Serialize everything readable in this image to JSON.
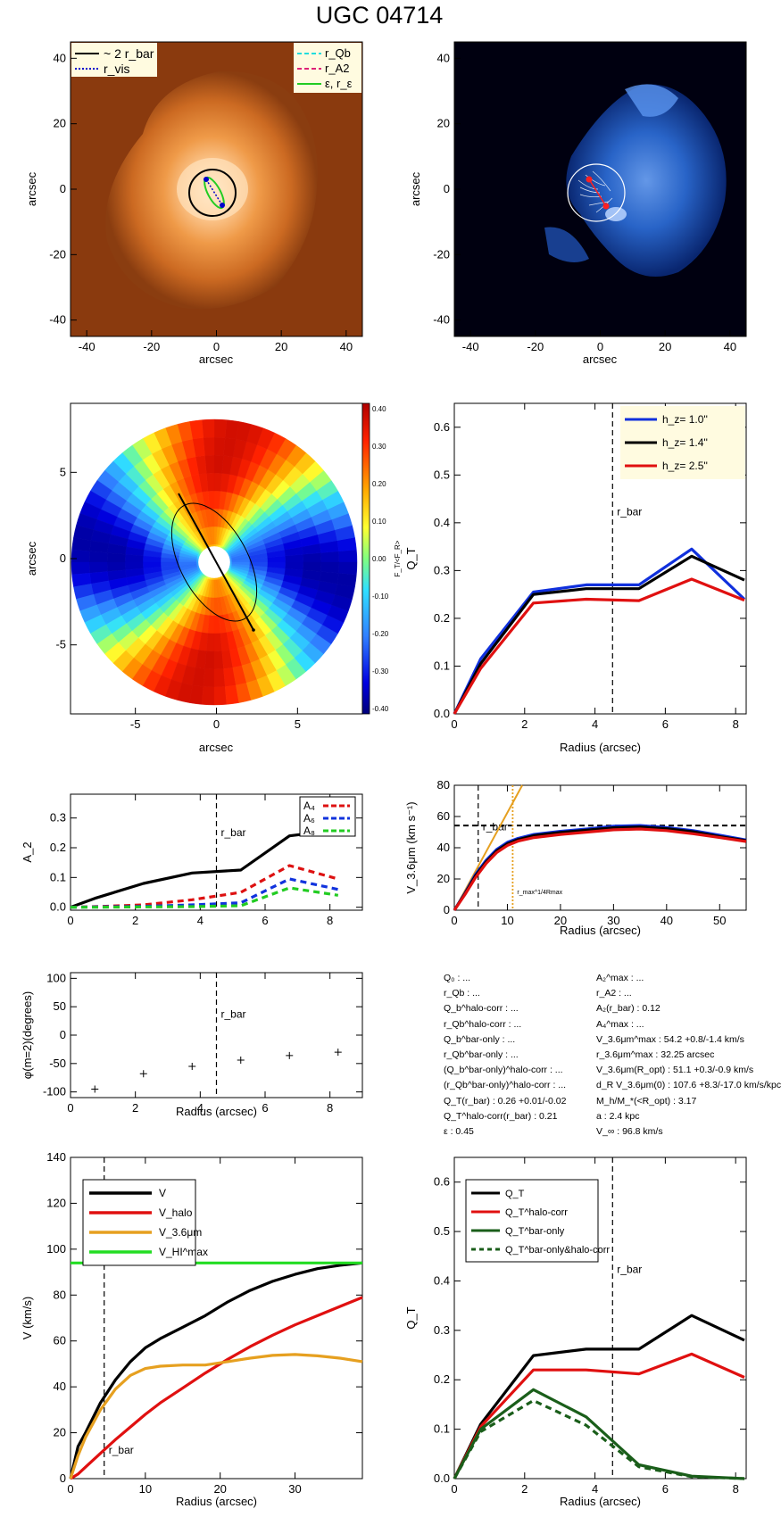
{
  "title": "UGC 04714",
  "info_left": [
    "Q₀ : ...",
    "r_Qb : ...",
    "Q_b^halo-corr : ...",
    "r_Qb^halo-corr : ...",
    "Q_b^bar-only : ...",
    "r_Qb^bar-only : ...",
    "(Q_b^bar-only)^halo-corr : ...",
    "(r_Qb^bar-only)^halo-corr : ...",
    "Q_T(r_bar) :  0.26 +0.01/-0.02",
    "Q_T^halo-corr(r_bar) :  0.21",
    "ε :  0.45"
  ],
  "info_right": [
    "A₂^max : ...",
    "r_A2 : ...",
    "A₂(r_bar) :  0.12",
    "A₄^max : ...",
    "V_3.6μm^max :  54.2 +0.8/-1.4 km/s",
    "r_3.6μm^max :  32.25 arcsec",
    "V_3.6μm(R_opt) :  51.1 +0.3/-0.9 km/s",
    "d_R V_3.6μm(0) :  107.6 +8.3/-17.0 km/s/kpc",
    "M_h/M_*(<R_opt) :  3.17",
    "a :  2.4 kpc",
    "V_∞ :  96.8 km/s"
  ],
  "image_panels": {
    "xlabel": "arcsec",
    "ylabel": "arcsec",
    "ticks": [
      -40,
      -20,
      0,
      20,
      40
    ],
    "legend_left": [
      "~ 2 r_bar",
      "r_vis"
    ],
    "legend_right": [
      "r_Qb",
      "r_A2",
      "ε, r_ε"
    ],
    "colors": {
      "two_rbar": "#000000",
      "rvis": "#0000cc",
      "rqb": "#22dddd",
      "ra2": "#dd2277",
      "eps": "#22cc22"
    }
  },
  "polar_map": {
    "xlabel": "arcsec",
    "ylabel": "arcsec",
    "ticks": [
      -5,
      0,
      5
    ],
    "colorbar_label": "F_T/<F_R>",
    "colorbar_ticks": [
      "0.40",
      "0.30",
      "0.20",
      "0.10",
      "0.00",
      "-0.10",
      "-0.20",
      "-0.30",
      "-0.40"
    ]
  },
  "chart_data": [
    {
      "id": "qt_hz",
      "type": "line",
      "xlabel": "Radius (arcsec)",
      "ylabel": "Q_T",
      "xlim": [
        0,
        8.3
      ],
      "ylim": [
        0,
        0.65
      ],
      "xticks": [
        0,
        2,
        4,
        6,
        8
      ],
      "yticks": [
        0.0,
        0.1,
        0.2,
        0.3,
        0.4,
        0.5,
        0.6
      ],
      "vline_label": "r_bar",
      "vline_x": 4.5,
      "x": [
        0,
        0.75,
        2.25,
        3.75,
        5.25,
        6.75,
        8.25
      ],
      "series": [
        {
          "name": "h_z=  1.0''",
          "color": "#1030dd",
          "values": [
            0,
            0.115,
            0.255,
            0.27,
            0.27,
            0.345,
            0.24
          ]
        },
        {
          "name": "h_z=  1.4''",
          "color": "#000000",
          "values": [
            0,
            0.105,
            0.25,
            0.262,
            0.262,
            0.33,
            0.28
          ]
        },
        {
          "name": "h_z=  2.5''",
          "color": "#e01010",
          "values": [
            0,
            0.095,
            0.232,
            0.24,
            0.237,
            0.282,
            0.238
          ]
        }
      ]
    },
    {
      "id": "a2",
      "type": "line",
      "xlabel": "",
      "ylabel": "A_2",
      "xlim": [
        0,
        9
      ],
      "ylim": [
        -0.01,
        0.38
      ],
      "xticks": [
        0,
        2,
        4,
        6,
        8
      ],
      "yticks": [
        0.0,
        0.1,
        0.2,
        0.3
      ],
      "vline_label": "r_bar",
      "vline_x": 4.5,
      "x": [
        0,
        0.75,
        2.25,
        3.75,
        5.25,
        6.75,
        8.25
      ],
      "series": [
        {
          "name": "A_2",
          "color": "#000000",
          "dashed": false,
          "values": [
            0,
            0.03,
            0.08,
            0.115,
            0.125,
            0.24,
            0.26
          ]
        },
        {
          "name": "A_4",
          "color": "#dd1111",
          "dashed": true,
          "values": [
            0,
            0.002,
            0.008,
            0.025,
            0.05,
            0.14,
            0.095
          ]
        },
        {
          "name": "A_6",
          "color": "#1133dd",
          "dashed": true,
          "values": [
            0,
            0.001,
            0.003,
            0.008,
            0.015,
            0.095,
            0.06
          ]
        },
        {
          "name": "A_8",
          "color": "#22cc22",
          "dashed": true,
          "values": [
            0,
            0.0,
            0.001,
            0.002,
            0.005,
            0.065,
            0.04
          ]
        }
      ],
      "legend_entries": [
        "A₄",
        "A₆",
        "A₈"
      ]
    },
    {
      "id": "v36",
      "type": "line",
      "xlabel": "Radius (arcsec)",
      "ylabel": "V_3.6μm (km s⁻¹)",
      "xlim": [
        0,
        55
      ],
      "ylim": [
        0,
        80
      ],
      "xticks": [
        0,
        10,
        20,
        30,
        40,
        50
      ],
      "yticks": [
        0,
        20,
        40,
        60,
        80
      ],
      "vline_label": "r_bar",
      "vline_x": 4.5,
      "hline_y": 54.2,
      "rmax_x": 11,
      "rmax_label": "r_max^1/4Rmax",
      "x": [
        0,
        2,
        4,
        6,
        8,
        10,
        12,
        15,
        20,
        25,
        30,
        35,
        40,
        45,
        50,
        55
      ],
      "series": [
        {
          "name": "hz1.0",
          "color": "#1030dd",
          "values": [
            0,
            11,
            23,
            32,
            39,
            43.5,
            46,
            48.5,
            50.5,
            52,
            53.8,
            54.2,
            53,
            51,
            48,
            45
          ]
        },
        {
          "name": "hz1.4",
          "color": "#000000",
          "values": [
            0,
            10.5,
            22,
            31,
            38,
            42.5,
            45.2,
            47.8,
            49.8,
            51.3,
            52.8,
            53.3,
            52.2,
            50.2,
            47.2,
            44.5
          ]
        },
        {
          "name": "hz2.5",
          "color": "#e01010",
          "values": [
            0,
            10,
            21,
            30,
            37,
            41.5,
            44.2,
            46.5,
            48.5,
            50,
            51.5,
            52,
            51,
            49,
            46.5,
            44
          ]
        }
      ],
      "slope_line": {
        "color": "#e6a020",
        "x": [
          0,
          12.8
        ],
        "y": [
          0,
          80
        ]
      }
    },
    {
      "id": "phase",
      "type": "scatter",
      "xlabel": "Radius (arcsec)",
      "ylabel": "φ(m=2)(degrees)",
      "xlim": [
        0,
        9
      ],
      "ylim": [
        -110,
        110
      ],
      "xticks": [
        0,
        2,
        4,
        6,
        8
      ],
      "yticks": [
        -100,
        -50,
        0,
        50,
        100
      ],
      "vline_label": "r_bar",
      "vline_x": 4.5,
      "x": [
        0.75,
        2.25,
        3.75,
        5.25,
        6.75,
        8.25
      ],
      "values": [
        -95,
        -68,
        -55,
        -44,
        -36,
        -30
      ]
    },
    {
      "id": "vdecomp",
      "type": "line",
      "xlabel": "Radius (arcsec)",
      "ylabel": "V (km/s)",
      "xlim": [
        0,
        39
      ],
      "ylim": [
        0,
        140
      ],
      "xticks": [
        0,
        10,
        20,
        30
      ],
      "yticks": [
        0,
        20,
        40,
        60,
        80,
        100,
        120,
        140
      ],
      "vline_label": "r_bar",
      "vline_x": 4.5,
      "x": [
        0,
        1,
        2,
        4,
        6,
        8,
        10,
        12,
        15,
        18,
        21,
        24,
        27,
        30,
        33,
        36,
        39
      ],
      "series": [
        {
          "name": "V",
          "color": "#000000",
          "values": [
            0,
            14,
            20,
            33,
            43,
            51,
            57,
            61,
            66,
            71,
            77,
            82,
            86,
            89,
            91.5,
            93,
            94
          ]
        },
        {
          "name": "V_halo",
          "color": "#e01010",
          "values": [
            0,
            2,
            5,
            11,
            17,
            22.5,
            28,
            33,
            39.5,
            46,
            52,
            57.5,
            62.5,
            67,
            71,
            75,
            79
          ]
        },
        {
          "name": "V_3.6μm",
          "color": "#e6a020",
          "values": [
            0,
            10,
            18,
            30,
            39,
            45,
            48,
            49,
            49.5,
            49.5,
            51,
            52.5,
            53.7,
            54.1,
            53.5,
            52.5,
            51
          ]
        },
        {
          "name": "V_HI^max",
          "color": "#22dd22",
          "values": [
            94,
            94,
            94,
            94,
            94,
            94,
            94,
            94,
            94,
            94,
            94,
            94,
            94,
            94,
            94,
            94,
            94
          ]
        }
      ]
    },
    {
      "id": "qt_corr",
      "type": "line",
      "xlabel": "Radius (arcsec)",
      "ylabel": "Q_T",
      "xlim": [
        0,
        8.3
      ],
      "ylim": [
        0,
        0.65
      ],
      "xticks": [
        0,
        2,
        4,
        6,
        8
      ],
      "yticks": [
        0.0,
        0.1,
        0.2,
        0.3,
        0.4,
        0.5,
        0.6
      ],
      "vline_label": "r_bar",
      "vline_x": 4.5,
      "x": [
        0,
        0.75,
        2.25,
        3.75,
        5.25,
        6.75,
        8.25
      ],
      "series": [
        {
          "name": "Q_T",
          "color": "#000000",
          "dashed": false,
          "values": [
            0,
            0.11,
            0.249,
            0.262,
            0.262,
            0.33,
            0.28
          ]
        },
        {
          "name": "Q_T^halo-corr",
          "color": "#e01010",
          "dashed": false,
          "values": [
            0,
            0.105,
            0.22,
            0.22,
            0.212,
            0.252,
            0.205
          ]
        },
        {
          "name": "Q_T^bar-only",
          "color": "#1a5e1a",
          "dashed": false,
          "values": [
            0,
            0.1,
            0.18,
            0.125,
            0.028,
            0.005,
            0.0
          ]
        },
        {
          "name": "Q_T^bar-only&halo-corr",
          "color": "#1a5e1a",
          "dashed": true,
          "values": [
            0,
            0.095,
            0.158,
            0.108,
            0.024,
            0.004,
            0.0
          ]
        }
      ]
    }
  ]
}
